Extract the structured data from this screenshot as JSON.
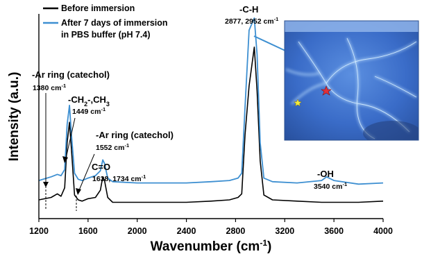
{
  "chart_data": {
    "type": "line",
    "title": "",
    "xlabel": "Wavenumber (cm-1)",
    "ylabel": "Intensity (a.u.)",
    "xlim": [
      1200,
      4000
    ],
    "ylim": [
      0,
      1.5
    ],
    "x_ticks": [
      "1200",
      "1600",
      "2000",
      "2400",
      "2800",
      "3200",
      "3600",
      "4000"
    ],
    "legend_position": "top-left",
    "grid": false,
    "series": [
      {
        "name": "Before immersion",
        "color": "#000000",
        "points": [
          [
            1200,
            0.08
          ],
          [
            1300,
            0.1
          ],
          [
            1350,
            0.13
          ],
          [
            1380,
            0.11
          ],
          [
            1410,
            0.18
          ],
          [
            1430,
            0.55
          ],
          [
            1449,
            0.72
          ],
          [
            1465,
            0.5
          ],
          [
            1490,
            0.12
          ],
          [
            1520,
            0.08
          ],
          [
            1552,
            0.07
          ],
          [
            1600,
            0.09
          ],
          [
            1660,
            0.1
          ],
          [
            1700,
            0.16
          ],
          [
            1720,
            0.27
          ],
          [
            1734,
            0.24
          ],
          [
            1760,
            0.1
          ],
          [
            1800,
            0.06
          ],
          [
            2000,
            0.06
          ],
          [
            2200,
            0.06
          ],
          [
            2400,
            0.06
          ],
          [
            2600,
            0.07
          ],
          [
            2750,
            0.08
          ],
          [
            2820,
            0.1
          ],
          [
            2850,
            0.13
          ],
          [
            2877,
            0.62
          ],
          [
            2910,
            1.02
          ],
          [
            2952,
            1.34
          ],
          [
            2975,
            0.98
          ],
          [
            3000,
            0.4
          ],
          [
            3030,
            0.12
          ],
          [
            3100,
            0.08
          ],
          [
            3300,
            0.07
          ],
          [
            3500,
            0.06
          ],
          [
            3600,
            0.06
          ],
          [
            3800,
            0.06
          ],
          [
            4000,
            0.07
          ]
        ]
      },
      {
        "name": "After 7 days of immersion in PBS buffer (pH 7.4)",
        "color": "#3d8fd1",
        "points": [
          [
            1200,
            0.24
          ],
          [
            1300,
            0.27
          ],
          [
            1350,
            0.29
          ],
          [
            1380,
            0.28
          ],
          [
            1410,
            0.33
          ],
          [
            1430,
            0.7
          ],
          [
            1449,
            0.86
          ],
          [
            1465,
            0.62
          ],
          [
            1490,
            0.3
          ],
          [
            1520,
            0.25
          ],
          [
            1552,
            0.24
          ],
          [
            1600,
            0.26
          ],
          [
            1660,
            0.28
          ],
          [
            1700,
            0.32
          ],
          [
            1720,
            0.41
          ],
          [
            1734,
            0.38
          ],
          [
            1760,
            0.26
          ],
          [
            1800,
            0.23
          ],
          [
            2000,
            0.22
          ],
          [
            2200,
            0.22
          ],
          [
            2400,
            0.22
          ],
          [
            2600,
            0.23
          ],
          [
            2750,
            0.24
          ],
          [
            2820,
            0.26
          ],
          [
            2850,
            0.3
          ],
          [
            2877,
            0.85
          ],
          [
            2910,
            1.48
          ],
          [
            2952,
            1.58
          ],
          [
            2975,
            1.28
          ],
          [
            3000,
            0.55
          ],
          [
            3030,
            0.26
          ],
          [
            3100,
            0.23
          ],
          [
            3300,
            0.22
          ],
          [
            3500,
            0.24
          ],
          [
            3540,
            0.27
          ],
          [
            3600,
            0.24
          ],
          [
            3800,
            0.21
          ],
          [
            4000,
            0.22
          ]
        ]
      }
    ],
    "legend": [
      "Before immersion",
      "After 7 days of immersion",
      "in PBS buffer (pH 7.4)"
    ],
    "annotations": [
      {
        "id": "ar1",
        "label": "-Ar ring (catechol)",
        "sub": "1380 cm-1",
        "x": 1300
      },
      {
        "id": "ch2",
        "label": "-CH2-,CH3",
        "sub": "1449 cm-1",
        "x": 1449
      },
      {
        "id": "ar2",
        "label": "-Ar ring (catechol)",
        "sub": "1552 cm-1",
        "x": 1552
      },
      {
        "id": "co",
        "label": "C=O",
        "sub": "1638, 1734 cm-1",
        "x": 1734
      },
      {
        "id": "ch",
        "label": "-C-H",
        "sub": "2877, 2952 cm-1",
        "x": 2952
      },
      {
        "id": "oh",
        "label": "-OH",
        "sub": "3540 cm-1",
        "x": 3540
      }
    ]
  }
}
